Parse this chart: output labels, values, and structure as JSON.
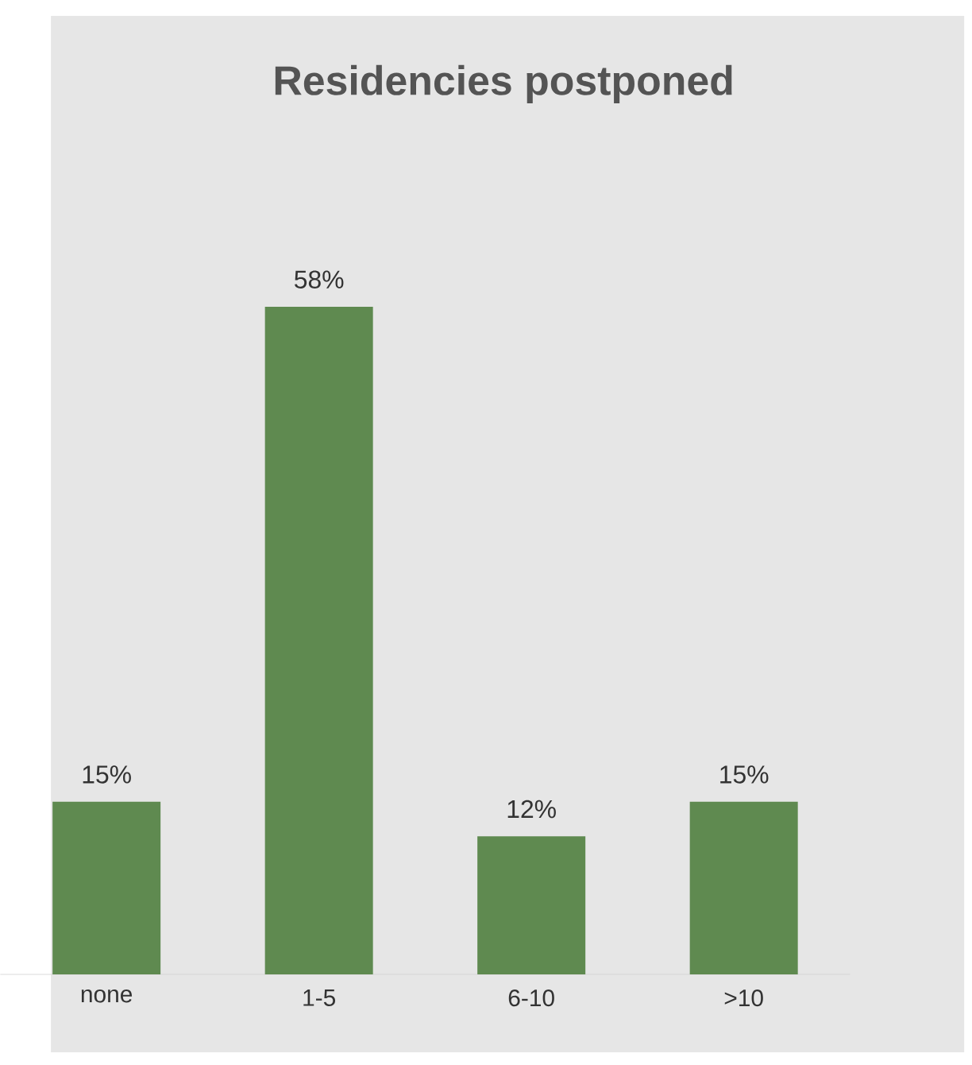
{
  "chart_data": {
    "type": "bar",
    "title": "Residencies postponed",
    "categories": [
      "none",
      "1-5",
      "6-10",
      ">10"
    ],
    "values": [
      15,
      58,
      12,
      15
    ],
    "value_labels": [
      "15%",
      "58%",
      "12%",
      "15%"
    ],
    "color": "#5f8a50"
  }
}
